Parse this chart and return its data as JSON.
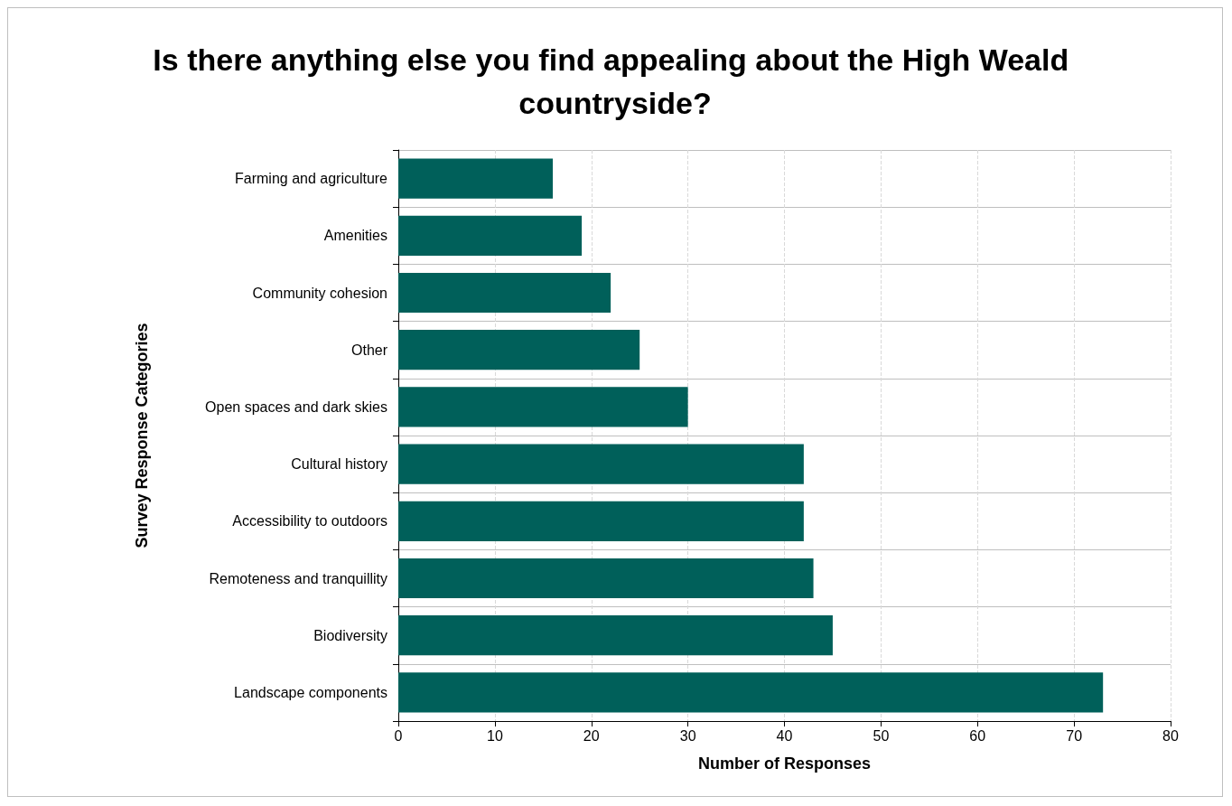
{
  "chart_data": {
    "type": "bar",
    "orientation": "horizontal",
    "title": "Is there anything else you find appealing about the High Weald countryside?",
    "xlabel": "Number of Responses",
    "ylabel": "Survey Response Categories",
    "categories": [
      "Farming and agriculture",
      "Amenities",
      "Community cohesion",
      "Other",
      "Open spaces and dark skies",
      "Cultural history",
      "Accessibility to outdoors",
      "Remoteness and tranquillity",
      "Biodiversity",
      "Landscape components"
    ],
    "values": [
      16,
      19,
      22,
      25,
      30,
      42,
      42,
      43,
      45,
      73
    ],
    "color": "#00605a",
    "xlim": [
      0,
      80
    ],
    "xticks": [
      0,
      10,
      20,
      30,
      40,
      50,
      60,
      70,
      80
    ],
    "grid": true
  }
}
